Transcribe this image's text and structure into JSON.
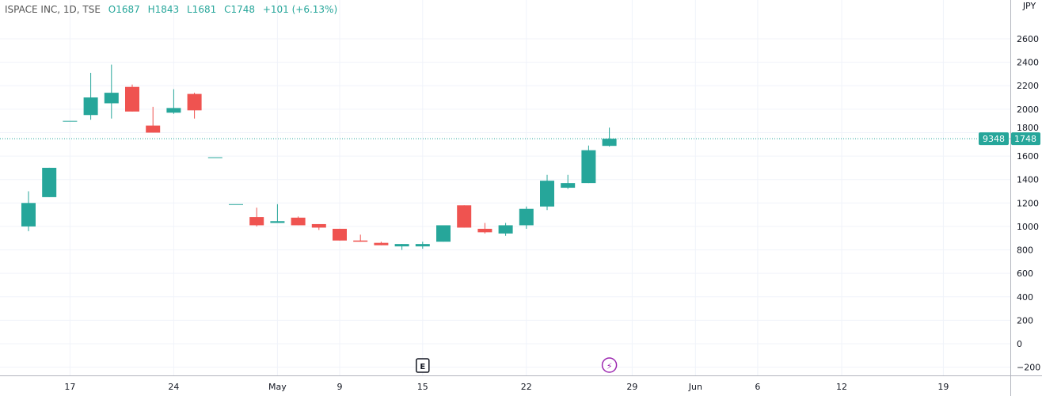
{
  "header": {
    "symbol": "ISPACE INC, 1D, TSE",
    "open": "O1687",
    "high": "H1843",
    "low": "L1681",
    "close": "C1748",
    "change": "+101 (+6.13%)"
  },
  "colors": {
    "up": "#26a69a",
    "down": "#ef5350",
    "grid": "#f0f3fa",
    "axis": "#787b86",
    "event": "#9c27b0"
  },
  "chart_data": {
    "type": "candlestick",
    "title": "ISPACE INC, 1D, TSE",
    "currency": "JPY",
    "ylim": [
      -280,
      2800
    ],
    "y_ticks": [
      -200,
      0,
      200,
      400,
      600,
      800,
      1000,
      1200,
      1400,
      1600,
      1800,
      2000,
      2200,
      2400,
      2600
    ],
    "x_ticks": [
      {
        "label": "17",
        "bar": 2
      },
      {
        "label": "24",
        "bar": 7
      },
      {
        "label": "May",
        "bar": 12
      },
      {
        "label": "9",
        "bar": 15
      },
      {
        "label": "15",
        "bar": 19
      },
      {
        "label": "22",
        "bar": 24
      },
      {
        "label": "29",
        "bar": 29.1
      },
      {
        "label": "Jun",
        "bar": 32.15
      },
      {
        "label": "6",
        "bar": 35.15
      },
      {
        "label": "12",
        "bar": 39.2
      },
      {
        "label": "19",
        "bar": 44.1
      }
    ],
    "candles": [
      {
        "o": 1000,
        "h": 1300,
        "l": 960,
        "c": 1200
      },
      {
        "o": 1250,
        "h": 1500,
        "l": 1250,
        "c": 1500
      },
      {
        "o": 1900,
        "h": 1900,
        "l": 1900,
        "c": 1900
      },
      {
        "o": 1950,
        "h": 2310,
        "l": 1910,
        "c": 2100
      },
      {
        "o": 2050,
        "h": 2380,
        "l": 1920,
        "c": 2140
      },
      {
        "o": 2190,
        "h": 2210,
        "l": 1980,
        "c": 1980
      },
      {
        "o": 1860,
        "h": 2020,
        "l": 1800,
        "c": 1800
      },
      {
        "o": 1970,
        "h": 2170,
        "l": 1960,
        "c": 2010
      },
      {
        "o": 2130,
        "h": 2140,
        "l": 1920,
        "c": 1990
      },
      {
        "o": 1590,
        "h": 1590,
        "l": 1590,
        "c": 1590
      },
      {
        "o": 1190,
        "h": 1190,
        "l": 1190,
        "c": 1190
      },
      {
        "o": 1080,
        "h": 1160,
        "l": 1000,
        "c": 1010
      },
      {
        "o": 1030,
        "h": 1190,
        "l": 1030,
        "c": 1045
      },
      {
        "o": 1075,
        "h": 1085,
        "l": 1010,
        "c": 1010
      },
      {
        "o": 1020,
        "h": 1020,
        "l": 970,
        "c": 990
      },
      {
        "o": 980,
        "h": 980,
        "l": 880,
        "c": 880
      },
      {
        "o": 880,
        "h": 930,
        "l": 870,
        "c": 870
      },
      {
        "o": 860,
        "h": 870,
        "l": 840,
        "c": 840
      },
      {
        "o": 830,
        "h": 850,
        "l": 800,
        "c": 850
      },
      {
        "o": 830,
        "h": 870,
        "l": 810,
        "c": 850
      },
      {
        "o": 870,
        "h": 1010,
        "l": 870,
        "c": 1010
      },
      {
        "o": 1180,
        "h": 1180,
        "l": 990,
        "c": 990
      },
      {
        "o": 980,
        "h": 1030,
        "l": 940,
        "c": 950
      },
      {
        "o": 940,
        "h": 1030,
        "l": 920,
        "c": 1010
      },
      {
        "o": 1010,
        "h": 1170,
        "l": 980,
        "c": 1150
      },
      {
        "o": 1170,
        "h": 1440,
        "l": 1140,
        "c": 1390
      },
      {
        "o": 1330,
        "h": 1440,
        "l": 1320,
        "c": 1370
      },
      {
        "o": 1370,
        "h": 1690,
        "l": 1370,
        "c": 1650
      },
      {
        "o": 1687,
        "h": 1843,
        "l": 1681,
        "c": 1748
      }
    ],
    "last_price": {
      "volume_label": "9348",
      "price_label": "1748",
      "value": 1748
    },
    "events": [
      {
        "type": "earnings",
        "label": "E",
        "bar": 19
      },
      {
        "type": "dividend-split",
        "label": "⚡",
        "bar": 28
      }
    ]
  }
}
